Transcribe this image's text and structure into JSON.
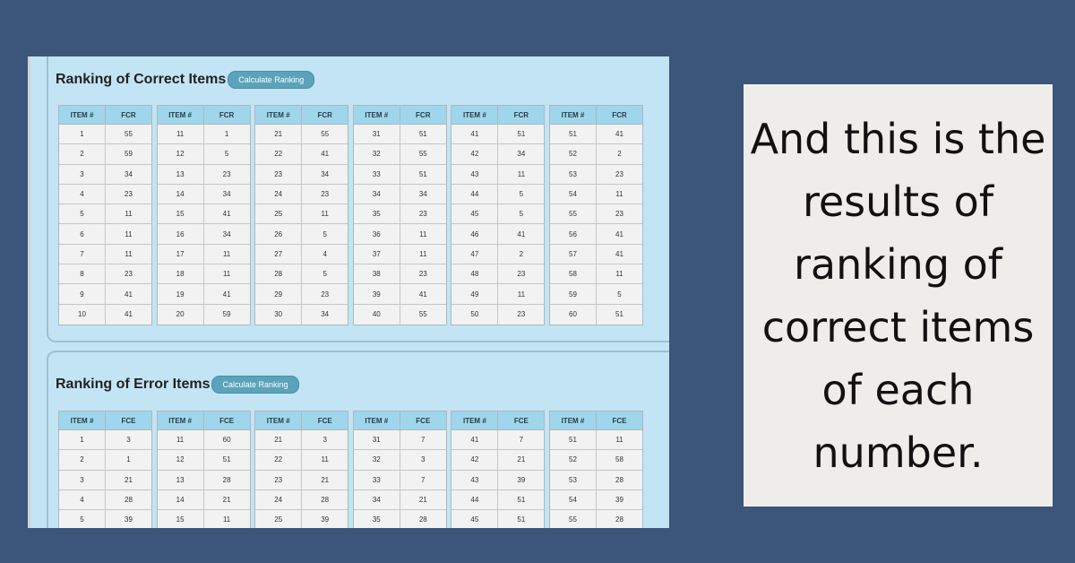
{
  "colors": {
    "background": "#3c557b",
    "panel": "#c3e4f4",
    "table_header": "#9fd6ec",
    "button": "#5aa3bb",
    "caption_card": "#eeedea"
  },
  "correct": {
    "title": "Ranking of Correct Items",
    "button_label": "Calculate Ranking",
    "col_item": "ITEM #",
    "col_value": "FCR",
    "groups": [
      [
        [
          "1",
          "55"
        ],
        [
          "2",
          "59"
        ],
        [
          "3",
          "34"
        ],
        [
          "4",
          "23"
        ],
        [
          "5",
          "11"
        ],
        [
          "6",
          "11"
        ],
        [
          "7",
          "11"
        ],
        [
          "8",
          "23"
        ],
        [
          "9",
          "41"
        ],
        [
          "10",
          "41"
        ]
      ],
      [
        [
          "11",
          "1"
        ],
        [
          "12",
          "5"
        ],
        [
          "13",
          "23"
        ],
        [
          "14",
          "34"
        ],
        [
          "15",
          "41"
        ],
        [
          "16",
          "34"
        ],
        [
          "17",
          "11"
        ],
        [
          "18",
          "11"
        ],
        [
          "19",
          "41"
        ],
        [
          "20",
          "59"
        ]
      ],
      [
        [
          "21",
          "55"
        ],
        [
          "22",
          "41"
        ],
        [
          "23",
          "34"
        ],
        [
          "24",
          "23"
        ],
        [
          "25",
          "11"
        ],
        [
          "26",
          "5"
        ],
        [
          "27",
          "4"
        ],
        [
          "28",
          "5"
        ],
        [
          "29",
          "23"
        ],
        [
          "30",
          "34"
        ]
      ],
      [
        [
          "31",
          "51"
        ],
        [
          "32",
          "55"
        ],
        [
          "33",
          "51"
        ],
        [
          "34",
          "34"
        ],
        [
          "35",
          "23"
        ],
        [
          "36",
          "11"
        ],
        [
          "37",
          "11"
        ],
        [
          "38",
          "23"
        ],
        [
          "39",
          "41"
        ],
        [
          "40",
          "55"
        ]
      ],
      [
        [
          "41",
          "51"
        ],
        [
          "42",
          "34"
        ],
        [
          "43",
          "11"
        ],
        [
          "44",
          "5"
        ],
        [
          "45",
          "5"
        ],
        [
          "46",
          "41"
        ],
        [
          "47",
          "2"
        ],
        [
          "48",
          "23"
        ],
        [
          "49",
          "11"
        ],
        [
          "50",
          "23"
        ]
      ],
      [
        [
          "51",
          "41"
        ],
        [
          "52",
          "2"
        ],
        [
          "53",
          "23"
        ],
        [
          "54",
          "11"
        ],
        [
          "55",
          "23"
        ],
        [
          "56",
          "41"
        ],
        [
          "57",
          "41"
        ],
        [
          "58",
          "11"
        ],
        [
          "59",
          "5"
        ],
        [
          "60",
          "51"
        ]
      ]
    ]
  },
  "error": {
    "title": "Ranking of Error Items",
    "button_label": "Calculate Ranking",
    "col_item": "ITEM #",
    "col_value": "FCE",
    "groups": [
      [
        [
          "1",
          "3"
        ],
        [
          "2",
          "1"
        ],
        [
          "3",
          "21"
        ],
        [
          "4",
          "28"
        ],
        [
          "5",
          "39"
        ],
        [
          "",
          ""
        ]
      ],
      [
        [
          "11",
          "60"
        ],
        [
          "12",
          "51"
        ],
        [
          "13",
          "28"
        ],
        [
          "14",
          "21"
        ],
        [
          "15",
          "11"
        ],
        [
          "",
          ""
        ]
      ],
      [
        [
          "21",
          "3"
        ],
        [
          "22",
          "11"
        ],
        [
          "23",
          "21"
        ],
        [
          "24",
          "28"
        ],
        [
          "25",
          "39"
        ],
        [
          "",
          ""
        ]
      ],
      [
        [
          "31",
          "7"
        ],
        [
          "32",
          "3"
        ],
        [
          "33",
          "7"
        ],
        [
          "34",
          "21"
        ],
        [
          "35",
          "28"
        ],
        [
          "",
          ""
        ]
      ],
      [
        [
          "41",
          "7"
        ],
        [
          "42",
          "21"
        ],
        [
          "43",
          "39"
        ],
        [
          "44",
          "51"
        ],
        [
          "45",
          "51"
        ],
        [
          "",
          ""
        ]
      ],
      [
        [
          "51",
          "11"
        ],
        [
          "52",
          "58"
        ],
        [
          "53",
          "28"
        ],
        [
          "54",
          "39"
        ],
        [
          "55",
          "28"
        ],
        [
          "",
          ""
        ]
      ]
    ]
  },
  "caption": {
    "text": "And this is the results of ranking of correct items of each number."
  }
}
